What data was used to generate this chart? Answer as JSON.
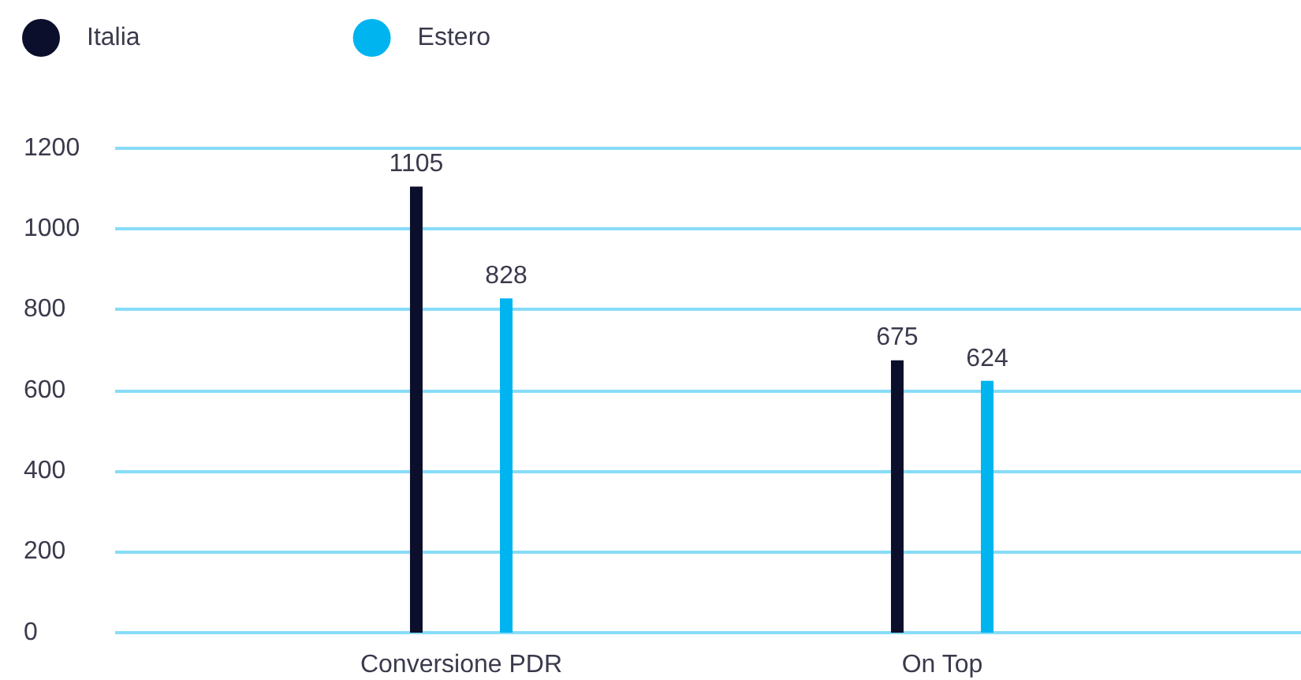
{
  "chart_data": {
    "type": "bar",
    "categories": [
      "Conversione PDR",
      "On Top"
    ],
    "series": [
      {
        "name": "Italia",
        "color": "#0b0f2b",
        "values": [
          1105,
          675
        ]
      },
      {
        "name": "Estero",
        "color": "#00b4f0",
        "values": [
          828,
          624
        ]
      }
    ],
    "ylim": [
      0,
      1200
    ],
    "yticks": [
      0,
      200,
      400,
      600,
      800,
      1000,
      1200
    ],
    "grid": "y",
    "legend": "top left",
    "data_labels": true
  }
}
